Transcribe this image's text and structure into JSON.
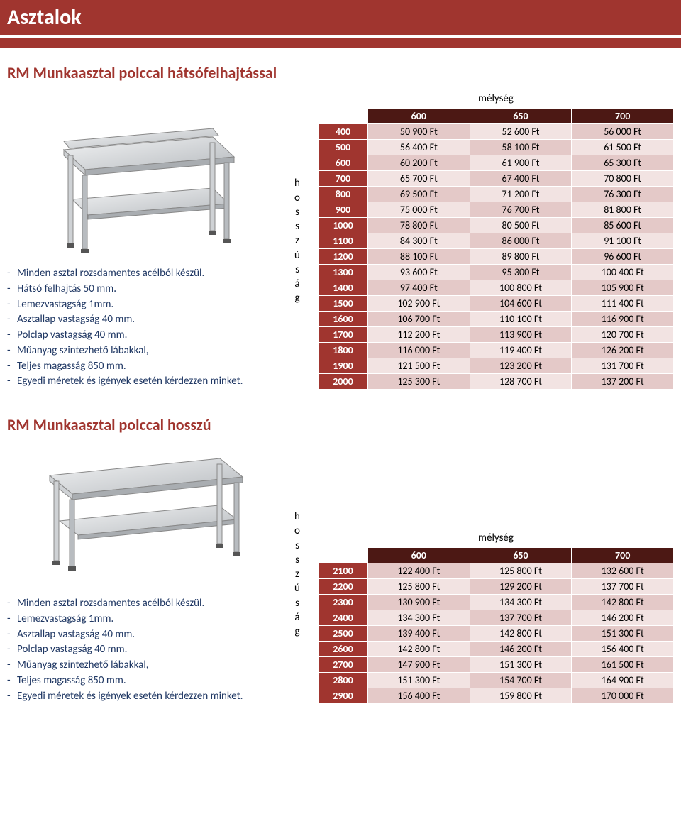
{
  "page": {
    "main_title": "Asztalok",
    "colors": {
      "brand": "#a0352f",
      "brand_dark": "#4c1814",
      "cell_a": "#e4c9c8",
      "cell_b": "#f2e3e2",
      "bullet_text": "#203864"
    }
  },
  "section1": {
    "heading": "RM Munkaasztal polccal hátsófelhajtással",
    "bullets": [
      "Minden asztal rozsdamentes acélból készül.",
      "Hátsó felhajtás 50 mm.",
      "Lemezvastagság 1mm.",
      "Asztallap vastagság 40 mm.",
      "Polclap vastagság 40 mm.",
      "Műanyag szintezhető lábakkal,",
      "Teljes magasság 850 mm.",
      "Egyedi méretek és igények esetén kérdezzen minket."
    ],
    "depth_label": "mélység",
    "length_label": "hosszúság",
    "depth_headers": [
      "600",
      "650",
      "700"
    ],
    "rows": [
      {
        "len": "400",
        "cells": [
          "50 900 Ft",
          "52 600 Ft",
          "56 000 Ft"
        ]
      },
      {
        "len": "500",
        "cells": [
          "56 400 Ft",
          "58 100 Ft",
          "61 500 Ft"
        ]
      },
      {
        "len": "600",
        "cells": [
          "60 200 Ft",
          "61 900 Ft",
          "65 300 Ft"
        ]
      },
      {
        "len": "700",
        "cells": [
          "65 700 Ft",
          "67 400 Ft",
          "70 800 Ft"
        ]
      },
      {
        "len": "800",
        "cells": [
          "69 500 Ft",
          "71 200 Ft",
          "76 300 Ft"
        ]
      },
      {
        "len": "900",
        "cells": [
          "75 000 Ft",
          "76 700 Ft",
          "81 800 Ft"
        ]
      },
      {
        "len": "1000",
        "cells": [
          "78 800 Ft",
          "80 500 Ft",
          "85 600 Ft"
        ]
      },
      {
        "len": "1100",
        "cells": [
          "84 300 Ft",
          "86 000 Ft",
          "91 100 Ft"
        ]
      },
      {
        "len": "1200",
        "cells": [
          "88 100 Ft",
          "89 800 Ft",
          "96 600 Ft"
        ]
      },
      {
        "len": "1300",
        "cells": [
          "93 600 Ft",
          "95 300 Ft",
          "100 400 Ft"
        ]
      },
      {
        "len": "1400",
        "cells": [
          "97 400 Ft",
          "100 800 Ft",
          "105 900 Ft"
        ]
      },
      {
        "len": "1500",
        "cells": [
          "102 900 Ft",
          "104 600 Ft",
          "111 400 Ft"
        ]
      },
      {
        "len": "1600",
        "cells": [
          "106 700 Ft",
          "110 100 Ft",
          "116 900 Ft"
        ]
      },
      {
        "len": "1700",
        "cells": [
          "112 200 Ft",
          "113 900 Ft",
          "120 700 Ft"
        ]
      },
      {
        "len": "1800",
        "cells": [
          "116 000 Ft",
          "119 400 Ft",
          "126 200 Ft"
        ]
      },
      {
        "len": "1900",
        "cells": [
          "121 500 Ft",
          "123 200 Ft",
          "131 700 Ft"
        ]
      },
      {
        "len": "2000",
        "cells": [
          "125 300 Ft",
          "128 700 Ft",
          "137 200 Ft"
        ]
      }
    ],
    "illustration": {
      "has_backsplash": true
    }
  },
  "section2": {
    "heading": "RM Munkaasztal polccal hosszú",
    "bullets": [
      "Minden asztal rozsdamentes acélból készül.",
      "Lemezvastagság 1mm.",
      "Asztallap vastagság 40 mm.",
      "Polclap vastagság 40 mm.",
      "Műanyag szintezhető lábakkal,",
      "Teljes magasság 850 mm.",
      "Egyedi méretek és igények esetén kérdezzen minket."
    ],
    "depth_label": "mélység",
    "length_label": "hosszúság",
    "depth_headers": [
      "600",
      "650",
      "700"
    ],
    "rows": [
      {
        "len": "2100",
        "cells": [
          "122 400 Ft",
          "125 800 Ft",
          "132 600 Ft"
        ]
      },
      {
        "len": "2200",
        "cells": [
          "125 800 Ft",
          "129 200 Ft",
          "137 700 Ft"
        ]
      },
      {
        "len": "2300",
        "cells": [
          "130 900 Ft",
          "134 300 Ft",
          "142 800 Ft"
        ]
      },
      {
        "len": "2400",
        "cells": [
          "134 300 Ft",
          "137 700 Ft",
          "146 200 Ft"
        ]
      },
      {
        "len": "2500",
        "cells": [
          "139 400 Ft",
          "142 800 Ft",
          "151 300 Ft"
        ]
      },
      {
        "len": "2600",
        "cells": [
          "142 800 Ft",
          "146 200 Ft",
          "156 400 Ft"
        ]
      },
      {
        "len": "2700",
        "cells": [
          "147 900 Ft",
          "151 300 Ft",
          "161 500 Ft"
        ]
      },
      {
        "len": "2800",
        "cells": [
          "151 300 Ft",
          "154 700 Ft",
          "164 900 Ft"
        ]
      },
      {
        "len": "2900",
        "cells": [
          "156 400 Ft",
          "159 800 Ft",
          "170 000 Ft"
        ]
      }
    ],
    "illustration": {
      "has_backsplash": false
    }
  }
}
